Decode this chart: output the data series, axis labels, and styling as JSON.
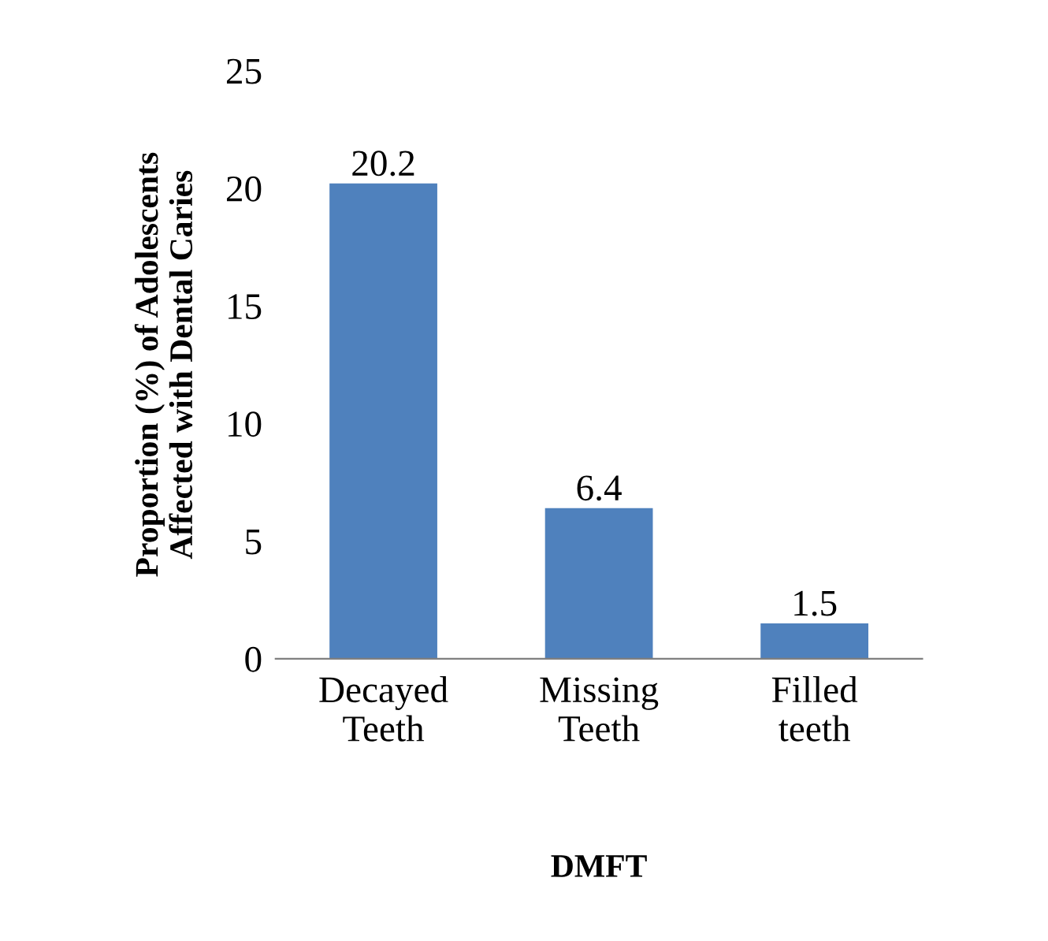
{
  "chart_data": {
    "type": "bar",
    "xlabel": "DMFT",
    "ylabel": "Proportion (%) of Adolescents\nAffected with Dental Caries",
    "categories": [
      "Decayed\nTeeth",
      "Missing\nTeeth",
      "Filled\nteeth"
    ],
    "values": [
      20.2,
      6.4,
      1.5
    ],
    "color": "#4f81bd",
    "ylim": [
      0,
      25
    ],
    "yticks": [
      0,
      5,
      10,
      15,
      20,
      25
    ],
    "data_labels": true,
    "grid": false,
    "legend": false
  }
}
